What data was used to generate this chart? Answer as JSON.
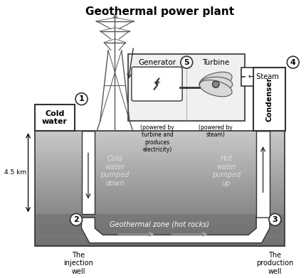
{
  "title": "Geothermal power plant",
  "background_color": "#ffffff",
  "labels": {
    "cold_water": "Cold\nwater",
    "condenser": "Condenser",
    "generator": "Generator",
    "turbine": "Turbine",
    "steam": "← Steam",
    "cold_pumped": "Cold\nwater\npumped\ndown",
    "hot_pumped": "Hot\nwater\npumped\nup",
    "geo_zone": "Geothermal zone (hot rocks)",
    "injection": "The\ninjection\nwell",
    "production": "The\nproduction\nwell",
    "distance": "4.5 km",
    "gen_sub": "(powered by\nturbine and\nproduces\nelectricity)",
    "turb_sub": "(powered by\nsteam)"
  },
  "numbers": {
    "n1": "1",
    "n2": "2",
    "n3": "3",
    "n4": "4",
    "n5": "5"
  }
}
